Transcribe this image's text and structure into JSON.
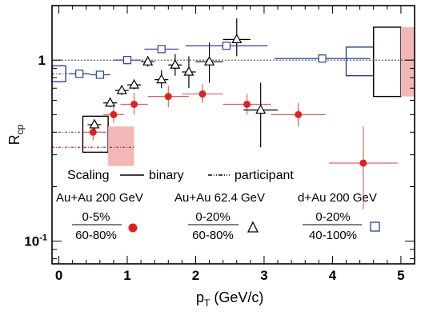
{
  "chart_data": {
    "type": "scatter",
    "xlabel": "p",
    "xlabel_sub": "T",
    "xlabel_unit": " (GeV/c)",
    "ylabel": "R",
    "ylabel_sub": "cp",
    "xlim": [
      -0.1,
      5.2
    ],
    "ylim": [
      0.075,
      2.0
    ],
    "yscale": "log",
    "x_ticks": [
      "0",
      "1",
      "2",
      "3",
      "4",
      "5"
    ],
    "y_tick_one": "1",
    "y_tick_tenth_base": "10",
    "y_tick_tenth_exp": "-1",
    "reference_lines": [
      {
        "name": "binary",
        "y": 1.0,
        "style": "dotted",
        "color": "#555555"
      },
      {
        "name": "participant",
        "y": 0.33,
        "style": "dotted-red",
        "color": "#c83228"
      },
      {
        "name": "participant",
        "y": 0.4,
        "style": "dotted",
        "color": "#555555"
      },
      {
        "name": "participant",
        "y": 0.84,
        "style": "dotted",
        "color": "#555555"
      }
    ],
    "scaling_legend": {
      "title": "Scaling",
      "binary": "binary",
      "participant": "participant"
    },
    "systems": [
      {
        "label": "Au+Au 200 GeV",
        "num": "0-5%",
        "den": "60-80%",
        "marker": "circle-filled",
        "color": "#dd2222"
      },
      {
        "label": "Au+Au 62.4 GeV",
        "num": "0-20%",
        "den": "60-80%",
        "marker": "triangle-open",
        "color": "#000000"
      },
      {
        "label": "d+Au 200 GeV",
        "num": "0-20%",
        "den": "40-100%",
        "marker": "square-open",
        "color": "#2a3fa0"
      }
    ],
    "series": [
      {
        "marker": "circle-filled",
        "color": "#dd2222",
        "errcolor": "#e06060",
        "points": [
          {
            "x": 0.5,
            "y": 0.4,
            "xerr": 0.15,
            "ylo": 0.36,
            "yhi": 0.45
          },
          {
            "x": 0.8,
            "y": 0.5,
            "xerr": 0.15,
            "ylo": 0.45,
            "yhi": 0.56
          },
          {
            "x": 1.1,
            "y": 0.57,
            "xerr": 0.2,
            "ylo": 0.5,
            "yhi": 0.66
          },
          {
            "x": 1.6,
            "y": 0.63,
            "xerr": 0.3,
            "ylo": 0.55,
            "yhi": 0.72
          },
          {
            "x": 2.1,
            "y": 0.65,
            "xerr": 0.3,
            "ylo": 0.58,
            "yhi": 0.74
          },
          {
            "x": 2.75,
            "y": 0.57,
            "xerr": 0.35,
            "ylo": 0.5,
            "yhi": 0.65
          },
          {
            "x": 3.5,
            "y": 0.5,
            "xerr": 0.4,
            "ylo": 0.43,
            "yhi": 0.58
          },
          {
            "x": 4.45,
            "y": 0.27,
            "xerr": 0.5,
            "ylo": 0.15,
            "yhi": 0.43
          }
        ]
      },
      {
        "marker": "triangle-open",
        "color": "#000000",
        "errcolor": "#000000",
        "points": [
          {
            "x": 0.52,
            "y": 0.44,
            "xerr": 0.1,
            "ylo": 0.41,
            "yhi": 0.47
          },
          {
            "x": 0.75,
            "y": 0.58,
            "xerr": 0.1,
            "ylo": 0.55,
            "yhi": 0.62
          },
          {
            "x": 0.92,
            "y": 0.68,
            "xerr": 0.1,
            "ylo": 0.64,
            "yhi": 0.72
          },
          {
            "x": 1.1,
            "y": 0.73,
            "xerr": 0.1,
            "ylo": 0.69,
            "yhi": 0.78
          },
          {
            "x": 1.3,
            "y": 0.98,
            "xerr": 0.1,
            "ylo": 0.92,
            "yhi": 1.05
          },
          {
            "x": 1.5,
            "y": 0.78,
            "xerr": 0.1,
            "ylo": 0.7,
            "yhi": 0.88
          },
          {
            "x": 1.7,
            "y": 0.94,
            "xerr": 0.1,
            "ylo": 0.82,
            "yhi": 1.08
          },
          {
            "x": 1.9,
            "y": 0.86,
            "xerr": 0.1,
            "ylo": 0.7,
            "yhi": 1.05
          },
          {
            "x": 2.2,
            "y": 0.98,
            "xerr": 0.2,
            "ylo": 0.75,
            "yhi": 1.25
          },
          {
            "x": 2.6,
            "y": 1.3,
            "xerr": 0.2,
            "ylo": 1.05,
            "yhi": 1.7
          },
          {
            "x": 2.95,
            "y": 0.53,
            "xerr": 0.25,
            "ylo": 0.33,
            "yhi": 0.75
          }
        ]
      },
      {
        "marker": "square-open",
        "color": "#2a3fa0",
        "errcolor": "#2a3fa0",
        "points": [
          {
            "x": 0.3,
            "y": 0.84,
            "xerr": 0.15,
            "ylo": 0.81,
            "yhi": 0.87
          },
          {
            "x": 0.6,
            "y": 0.83,
            "xerr": 0.15,
            "ylo": 0.8,
            "yhi": 0.86
          },
          {
            "x": 1.0,
            "y": 1.0,
            "xerr": 0.2,
            "ylo": 0.97,
            "yhi": 1.03
          },
          {
            "x": 1.5,
            "y": 1.15,
            "xerr": 0.25,
            "ylo": 1.11,
            "yhi": 1.19
          },
          {
            "x": 2.45,
            "y": 1.2,
            "xerr": 0.6,
            "ylo": 1.15,
            "yhi": 1.25
          },
          {
            "x": 3.85,
            "y": 1.02,
            "xerr": 0.7,
            "ylo": 0.98,
            "yhi": 1.06
          }
        ]
      }
    ],
    "syst_boxes": [
      {
        "x0": -0.1,
        "x1": 0.1,
        "y0": 0.76,
        "y1": 0.93,
        "fill": "none",
        "stroke": "#2a3fa0"
      },
      {
        "x0": 4.2,
        "x1": 4.6,
        "y0": 0.82,
        "y1": 1.18,
        "fill": "none",
        "stroke": "#2a3fa0"
      },
      {
        "x0": 4.6,
        "x1": 5.0,
        "y0": 0.63,
        "y1": 1.52,
        "fill": "none",
        "stroke": "#000000"
      },
      {
        "x0": 0.35,
        "x1": 0.72,
        "y0": 0.31,
        "y1": 0.49,
        "fill": "none",
        "stroke": "#000000"
      },
      {
        "x0": 0.72,
        "x1": 1.1,
        "y0": 0.26,
        "y1": 0.43,
        "fill": "#f2b8b8",
        "stroke": "none"
      },
      {
        "x0": 5.0,
        "x1": 5.2,
        "y0": 0.63,
        "y1": 1.52,
        "fill": "#f2b8b8",
        "stroke": "none"
      }
    ]
  }
}
